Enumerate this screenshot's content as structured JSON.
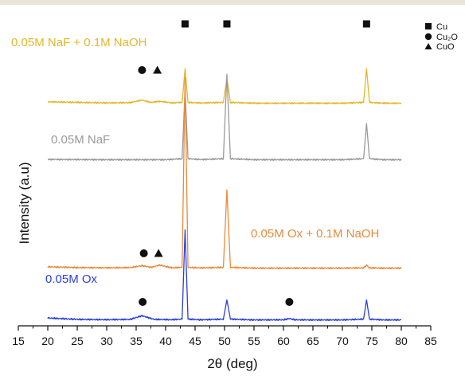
{
  "chart_data": {
    "type": "line",
    "title": "",
    "xlabel": "2θ (deg)",
    "ylabel": "Intensity (a.u)",
    "xlim": [
      15,
      85
    ],
    "xticks": [
      "15",
      "20",
      "25",
      "30",
      "35",
      "40",
      "45",
      "50",
      "55",
      "60",
      "65",
      "70",
      "75",
      "80",
      "85"
    ],
    "y_ticks_shown": false,
    "grid": false,
    "legend_position": "top-right",
    "legend": [
      {
        "name": "Cu",
        "marker": "square"
      },
      {
        "name": "Cu₂O",
        "marker": "circle"
      },
      {
        "name": "CuO",
        "marker": "triangle"
      }
    ],
    "series": [
      {
        "name": "0.05M NaF + 0.1M NaOH",
        "color": "#e3b72a",
        "x": [
          20,
          25,
          30,
          34,
          36,
          37.5,
          39,
          41,
          42.8,
          43.3,
          43.8,
          46,
          49.8,
          50.4,
          51,
          55,
          60,
          65,
          70,
          73.6,
          74.1,
          74.6,
          77,
          80
        ],
        "y": [
          1.5,
          1.0,
          0.6,
          0.8,
          3.0,
          1.0,
          2.0,
          0.6,
          1.0,
          30,
          1.0,
          0.5,
          1.0,
          22,
          1.0,
          0.3,
          0.3,
          0.3,
          0.3,
          1.0,
          30,
          1.0,
          0.3,
          0.3
        ]
      },
      {
        "name": "0.05M NaF",
        "color": "#9a9a9a",
        "x": [
          20,
          25,
          30,
          35,
          40,
          42.8,
          43.3,
          43.8,
          46,
          49.8,
          50.4,
          51,
          55,
          60,
          65,
          70,
          73.6,
          74.1,
          74.6,
          77,
          80
        ],
        "y": [
          0.5,
          0.4,
          0.3,
          0.3,
          0.3,
          1.0,
          50,
          1.0,
          0.4,
          1.0,
          61,
          1.0,
          0.3,
          0.3,
          0.3,
          0.3,
          1.0,
          26,
          1.0,
          0.3,
          0.3
        ]
      },
      {
        "name": "0.05M Ox + 0.1M NaOH",
        "color": "#ea8a3a",
        "x": [
          20,
          25,
          30,
          34,
          36,
          37.5,
          39,
          41,
          42.8,
          43.3,
          43.8,
          46,
          49.8,
          50.4,
          51,
          55,
          60,
          65,
          70,
          73.6,
          74.1,
          74.6,
          77,
          80
        ],
        "y": [
          1.5,
          0.8,
          0.6,
          0.8,
          2.5,
          1.0,
          3.0,
          0.6,
          1.0,
          170,
          1.0,
          0.5,
          1.0,
          70,
          1.0,
          0.3,
          0.3,
          0.3,
          0.3,
          0.5,
          3.0,
          0.5,
          0.3,
          0.3
        ]
      },
      {
        "name": "0.05M Ox",
        "color": "#2b3fdc",
        "x": [
          20,
          25,
          30,
          34,
          36,
          38,
          41,
          42.8,
          43.3,
          43.8,
          46,
          49.8,
          50.4,
          51,
          55,
          60,
          61,
          62,
          65,
          70,
          73.6,
          74.1,
          74.6,
          77,
          80
        ],
        "y": [
          2.0,
          0.8,
          0.5,
          0.8,
          4.0,
          0.8,
          0.5,
          1.0,
          80,
          1.0,
          0.4,
          1.0,
          18,
          1.0,
          0.3,
          0.4,
          1.5,
          0.4,
          0.3,
          0.3,
          1.0,
          18,
          1.0,
          0.3,
          0.3
        ]
      }
    ],
    "annotations": [
      {
        "series": "0.05M NaF + 0.1M NaOH",
        "marker": "square",
        "x": 43.3
      },
      {
        "series": "0.05M NaF + 0.1M NaOH",
        "marker": "square",
        "x": 50.4
      },
      {
        "series": "0.05M NaF + 0.1M NaOH",
        "marker": "square",
        "x": 74.1
      },
      {
        "series": "0.05M NaF + 0.1M NaOH",
        "marker": "circle",
        "x": 36.0
      },
      {
        "series": "0.05M NaF + 0.1M NaOH",
        "marker": "triangle",
        "x": 38.6
      },
      {
        "series": "0.05M Ox + 0.1M NaOH",
        "marker": "circle",
        "x": 36.3
      },
      {
        "series": "0.05M Ox + 0.1M NaOH",
        "marker": "triangle",
        "x": 38.8
      },
      {
        "series": "0.05M Ox",
        "marker": "circle",
        "x": 36.1
      },
      {
        "series": "0.05M Ox",
        "marker": "circle",
        "x": 61.0
      }
    ]
  }
}
